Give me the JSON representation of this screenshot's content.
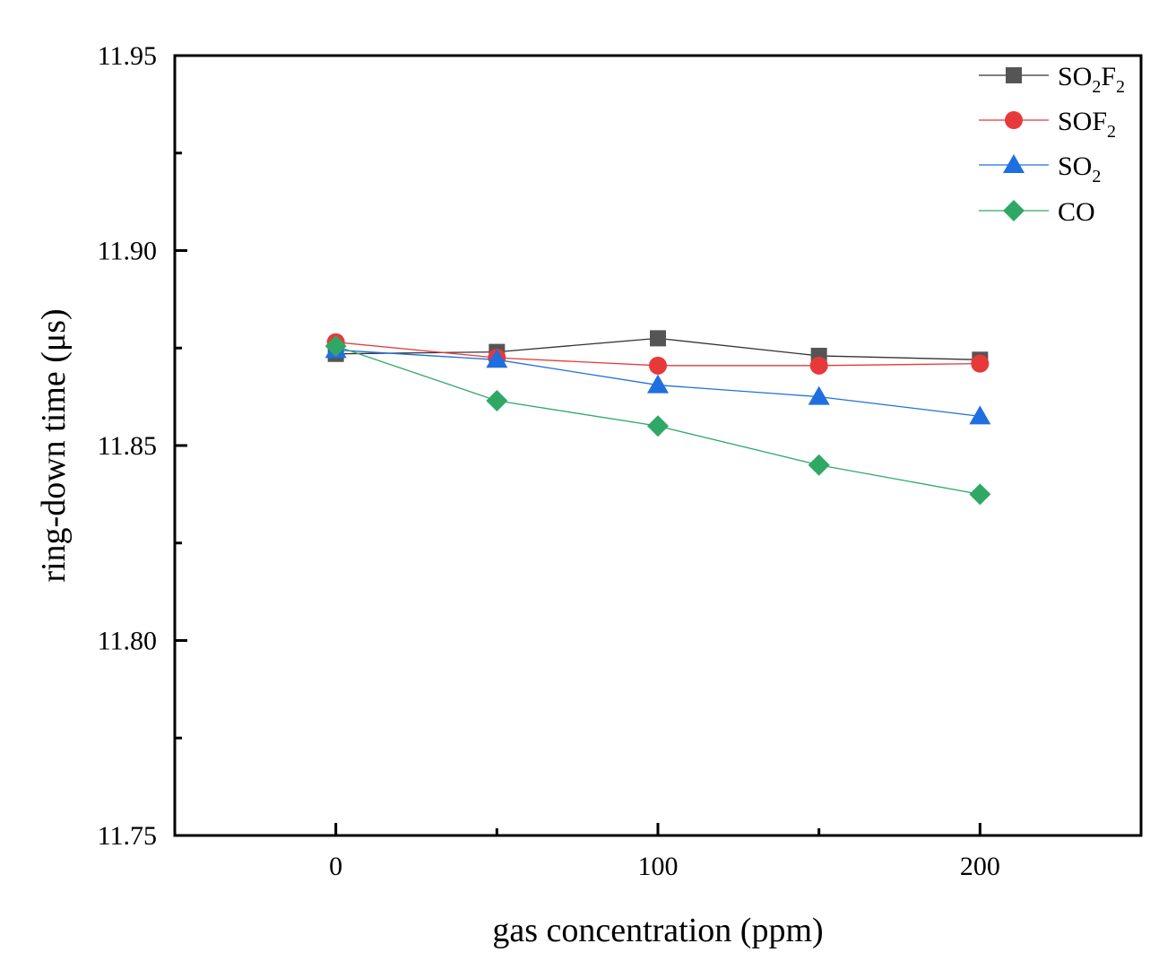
{
  "chart_data": {
    "type": "line",
    "title": "",
    "xlabel": "gas concentration (ppm)",
    "ylabel": "ring-down time (μs)",
    "xlim": [
      -50,
      250
    ],
    "ylim": [
      11.75,
      11.95
    ],
    "x_ticks": [
      0,
      100,
      200
    ],
    "x_tick_labels": [
      "0",
      "100",
      "200"
    ],
    "y_ticks": [
      11.75,
      11.8,
      11.85,
      11.9,
      11.95
    ],
    "y_tick_labels": [
      "11.75",
      "11.80",
      "11.85",
      "11.90",
      "11.95"
    ],
    "x": [
      0,
      50,
      100,
      150,
      200
    ],
    "legend_position": "top-right",
    "series": [
      {
        "name": "SO2F2",
        "label_main": "SO",
        "label_sub1": "2",
        "label_mid": "F",
        "label_sub2": "2",
        "marker": "square",
        "color": "#555555",
        "line_color": "#333333",
        "values": [
          11.8735,
          11.874,
          11.8775,
          11.873,
          11.872
        ]
      },
      {
        "name": "SOF2",
        "label_main": "SOF",
        "label_sub1": "2",
        "label_mid": "",
        "label_sub2": "",
        "marker": "circle",
        "color": "#e8393a",
        "line_color": "#e8393a",
        "values": [
          11.8765,
          11.8725,
          11.8705,
          11.8705,
          11.871
        ]
      },
      {
        "name": "SO2",
        "label_main": "SO",
        "label_sub1": "2",
        "label_mid": "",
        "label_sub2": "",
        "marker": "triangle",
        "color": "#1f6fe0",
        "line_color": "#1f6fe0",
        "values": [
          11.8745,
          11.872,
          11.8655,
          11.8625,
          11.8575
        ]
      },
      {
        "name": "CO",
        "label_main": "CO",
        "label_sub1": "",
        "label_mid": "",
        "label_sub2": "",
        "marker": "diamond",
        "color": "#2fa866",
        "line_color": "#2fa866",
        "values": [
          11.8755,
          11.8615,
          11.855,
          11.845,
          11.8375
        ]
      }
    ]
  }
}
